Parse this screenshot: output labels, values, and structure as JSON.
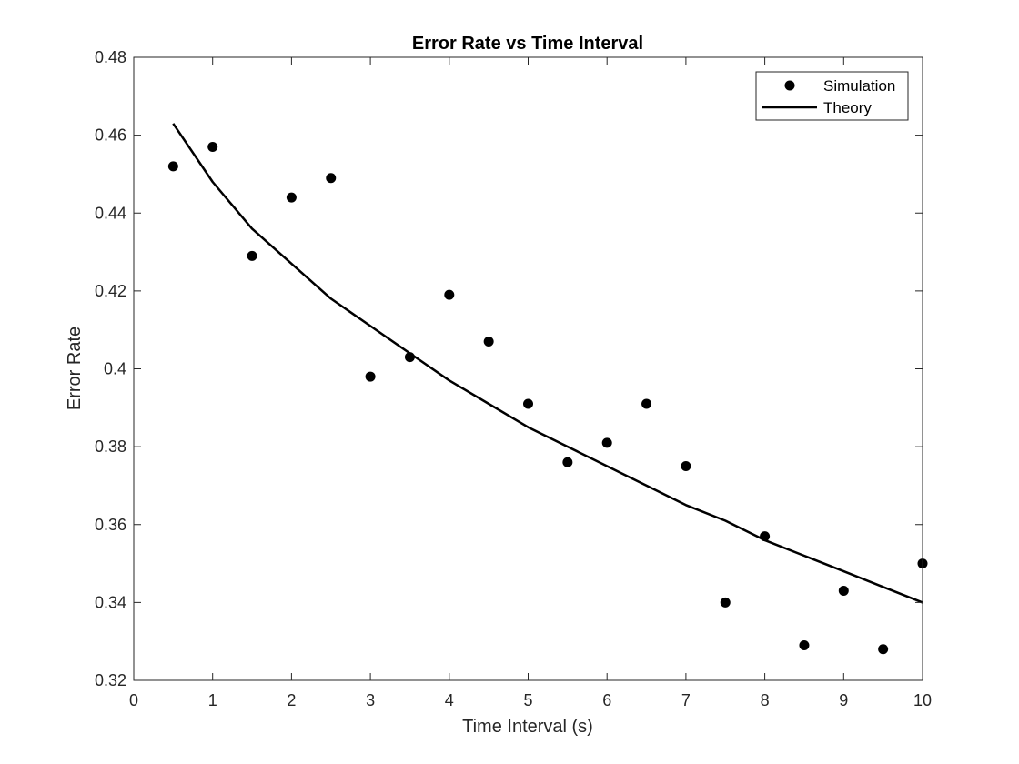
{
  "chart_data": {
    "type": "scatter",
    "title": "Error Rate vs Time Interval",
    "xlabel": "Time Interval (s)",
    "ylabel": "Error Rate",
    "xlim": [
      0,
      10
    ],
    "ylim": [
      0.32,
      0.48
    ],
    "xticks": [
      "0",
      "1",
      "2",
      "3",
      "4",
      "5",
      "6",
      "7",
      "8",
      "9",
      "10"
    ],
    "yticks": [
      "0.32",
      "0.34",
      "0.36",
      "0.38",
      "0.4",
      "0.42",
      "0.44",
      "0.46",
      "0.48"
    ],
    "grid": false,
    "legend_position": "top-right",
    "series": [
      {
        "name": "Simulation",
        "kind": "markers",
        "color": "#000000",
        "x": [
          0.5,
          1,
          1.5,
          2,
          2.5,
          3,
          3.5,
          4,
          4.5,
          5,
          5.5,
          6,
          6.5,
          7,
          7.5,
          8,
          8.5,
          9,
          9.5,
          10
        ],
        "y": [
          0.452,
          0.457,
          0.429,
          0.444,
          0.449,
          0.398,
          0.403,
          0.419,
          0.407,
          0.391,
          0.376,
          0.381,
          0.391,
          0.375,
          0.34,
          0.357,
          0.329,
          0.343,
          0.328,
          0.35
        ]
      },
      {
        "name": "Theory",
        "kind": "line",
        "color": "#000000",
        "x": [
          0.5,
          1,
          1.5,
          2,
          2.5,
          3,
          3.5,
          4,
          4.5,
          5,
          5.5,
          6,
          6.5,
          7,
          7.5,
          8,
          8.5,
          9,
          9.5,
          10
        ],
        "y": [
          0.463,
          0.448,
          0.436,
          0.427,
          0.418,
          0.411,
          0.404,
          0.397,
          0.391,
          0.385,
          0.38,
          0.375,
          0.37,
          0.365,
          0.361,
          0.356,
          0.352,
          0.348,
          0.344,
          0.34
        ]
      }
    ]
  }
}
